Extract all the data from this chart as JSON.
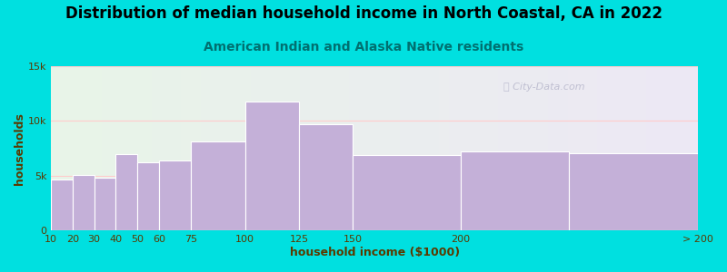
{
  "title": "Distribution of median household income in North Coastal, CA in 2022",
  "subtitle": "American Indian and Alaska Native residents",
  "xlabel": "household income ($1000)",
  "ylabel": "households",
  "background_outer": "#00e0e0",
  "background_inner": "#f0f8f0",
  "bar_color": "#c4b0d8",
  "bar_edge_color": "#ffffff",
  "bin_edges": [
    10,
    20,
    30,
    40,
    50,
    60,
    75,
    100,
    125,
    150,
    200,
    250,
    310
  ],
  "values": [
    4700,
    5100,
    4800,
    7000,
    6200,
    6400,
    8100,
    11800,
    9700,
    6900,
    7200,
    7100
  ],
  "xtick_positions": [
    10,
    20,
    30,
    40,
    50,
    60,
    75,
    100,
    125,
    150,
    200,
    310
  ],
  "xtick_labels": [
    "10",
    "20",
    "30",
    "40",
    "50",
    "60",
    "75",
    "100",
    "125",
    "150",
    "200",
    "> 200"
  ],
  "ylim": [
    0,
    15000
  ],
  "yticks": [
    0,
    5000,
    10000,
    15000
  ],
  "ytick_labels": [
    "0",
    "5k",
    "10k",
    "15k"
  ],
  "title_fontsize": 12,
  "subtitle_fontsize": 10,
  "axis_label_fontsize": 9,
  "tick_fontsize": 8,
  "title_color": "#000000",
  "subtitle_color": "#007070",
  "axis_label_color": "#5a3a00",
  "watermark_text": "ⓘ City-Data.com",
  "watermark_color": "#b8b8cc",
  "grid_color": "#ffcccc",
  "xmin": 10,
  "xmax": 310
}
